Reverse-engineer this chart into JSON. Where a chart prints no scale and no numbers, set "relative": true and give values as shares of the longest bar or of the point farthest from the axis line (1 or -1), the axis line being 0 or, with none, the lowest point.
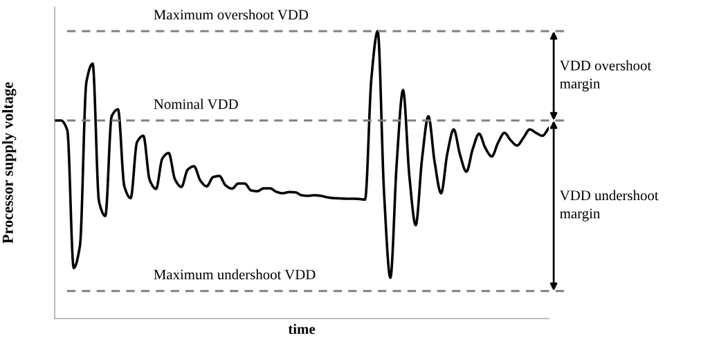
{
  "chart_data": {
    "type": "line",
    "relative": true,
    "xlabel": "time",
    "ylabel": "Processor supply voltage",
    "categories": [
      null,
      null,
      null,
      null,
      null,
      null,
      null,
      null,
      null,
      null,
      null,
      null,
      null,
      null,
      null,
      null,
      null,
      null,
      null,
      null,
      null,
      null,
      null,
      null,
      null,
      null,
      null,
      null,
      null,
      null,
      null,
      null,
      null,
      null,
      null,
      null,
      null,
      null,
      null,
      null,
      null,
      null,
      null,
      null,
      null,
      null,
      null,
      null,
      null,
      null,
      null,
      null,
      null,
      null,
      null,
      null,
      null,
      null,
      null,
      null,
      null,
      null,
      null,
      null,
      null,
      null,
      null,
      null,
      null,
      null,
      null,
      null,
      null,
      null,
      null,
      null,
      null,
      null,
      null
    ],
    "series": [
      {
        "color": "#000000",
        "values": [
          0.689,
          0.689,
          0.655,
          0.176,
          0.255,
          0.822,
          0.887,
          0.407,
          0.357,
          0.704,
          0.728,
          0.46,
          0.419,
          0.614,
          0.636,
          0.482,
          0.451,
          0.557,
          0.576,
          0.484,
          0.458,
          0.518,
          0.53,
          0.48,
          0.46,
          0.492,
          0.496,
          0.463,
          0.452,
          0.47,
          0.47,
          0.446,
          0.443,
          0.453,
          0.453,
          0.441,
          0.436,
          0.44,
          0.439,
          0.429,
          0.427,
          0.429,
          0.427,
          0.422,
          0.419,
          0.418,
          0.417,
          0.417,
          0.416,
          0.414,
          0.836,
          1.0,
          0.436,
          0.142,
          0.542,
          0.795,
          0.494,
          0.325,
          0.557,
          0.704,
          0.542,
          0.436,
          0.576,
          0.658,
          0.569,
          0.511,
          0.59,
          0.643,
          0.593,
          0.564,
          0.612,
          0.646,
          0.62,
          0.602,
          0.629,
          0.658,
          0.646,
          0.636,
          0.663
        ]
      }
    ],
    "ref_lines": [
      {
        "axis": "y",
        "value": 1.0,
        "label": "Maximum overshoot VDD",
        "color": "#808080",
        "line_style": "dashed"
      },
      {
        "axis": "y",
        "value": 0.689,
        "label": "Nominal VDD",
        "color": "#808080",
        "line_style": "dashed"
      },
      {
        "axis": "y",
        "value": 0.096,
        "label": "Maximum undershoot VDD",
        "color": "#808080",
        "line_style": "dashed"
      }
    ],
    "annotations": [
      "VDD overshoot\nmargin",
      "VDD undershoot\nmargin"
    ],
    "line_style": "solid",
    "marker": "none",
    "grid": false,
    "legend": false
  }
}
